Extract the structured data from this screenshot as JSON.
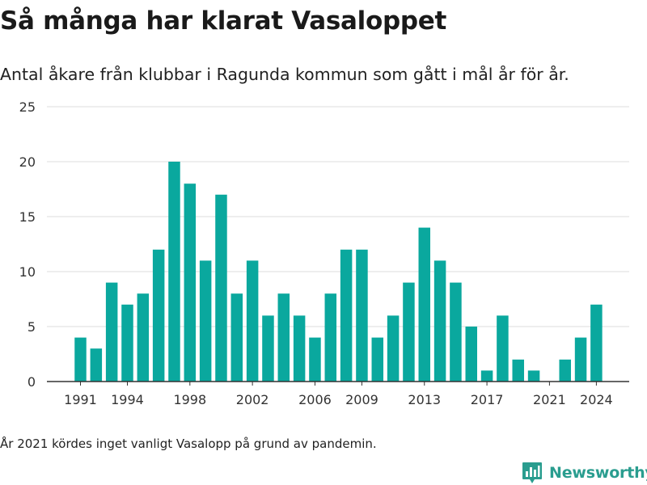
{
  "header": {
    "title": "Så många har klarat Vasaloppet",
    "subtitle": "Antal åkare från klubbar i Ragunda kommun som gått i mål år för år."
  },
  "footnote": "År 2021 kördes inget vanligt Vasalopp på grund av pandemin.",
  "brand": {
    "name": "Newsworthy",
    "icon": "newsworthy-logo-icon",
    "color": "#2a9d8f"
  },
  "colors": {
    "bar": "#0aa89e",
    "grid": "#dddddd",
    "axis": "#333333"
  },
  "chart_data": {
    "type": "bar",
    "categories": [
      1991,
      1992,
      1993,
      1994,
      1995,
      1996,
      1997,
      1998,
      1999,
      2000,
      2001,
      2002,
      2003,
      2004,
      2005,
      2006,
      2007,
      2008,
      2009,
      2010,
      2011,
      2012,
      2013,
      2014,
      2015,
      2016,
      2017,
      2018,
      2019,
      2020,
      2021,
      2022,
      2023,
      2024
    ],
    "values": [
      4,
      3,
      9,
      7,
      8,
      12,
      20,
      18,
      11,
      17,
      8,
      11,
      6,
      8,
      6,
      4,
      8,
      12,
      12,
      4,
      6,
      9,
      14,
      11,
      9,
      5,
      1,
      6,
      2,
      1,
      0,
      2,
      4,
      7
    ],
    "x_tick_labels": [
      "1991",
      "1994",
      "1998",
      "2002",
      "2006",
      "2009",
      "2013",
      "2017",
      "2021",
      "2024"
    ],
    "y_tick_labels": [
      "0",
      "5",
      "10",
      "15",
      "20",
      "25"
    ],
    "ylim": [
      0,
      25
    ],
    "xlabel": "",
    "ylabel": "",
    "grid": true
  }
}
